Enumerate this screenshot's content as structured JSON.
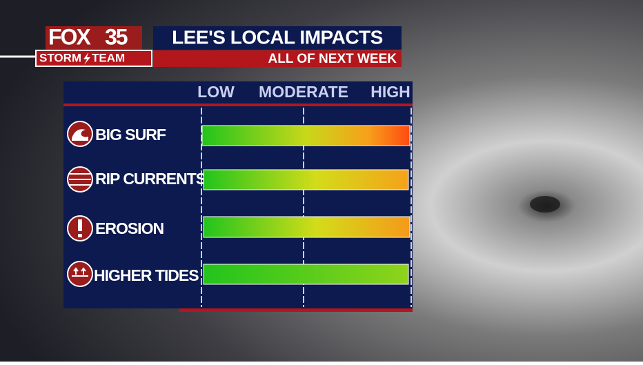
{
  "logo": {
    "brand": "FOX",
    "number": "35",
    "team_left": "STORM",
    "team_right": "TEAM"
  },
  "header": {
    "title": "LEE'S LOCAL IMPACTS",
    "subtitle": "ALL OF NEXT WEEK"
  },
  "scale": [
    "LOW",
    "MODERATE",
    "HIGH"
  ],
  "rows": [
    {
      "label": "BIG SURF"
    },
    {
      "label": "RIP CURRENTS"
    },
    {
      "label": "EROSION"
    },
    {
      "label": "HIGHER TIDES"
    }
  ]
}
